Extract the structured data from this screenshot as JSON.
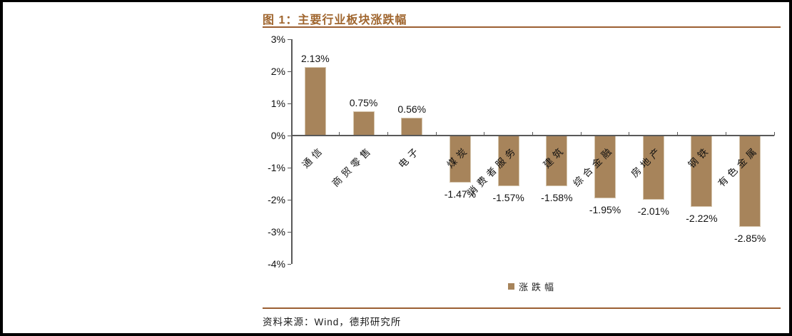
{
  "figure": {
    "title": "图 1：主要行业板块涨跌幅",
    "source": "资料来源：Wind，德邦研究所"
  },
  "chart_data": {
    "type": "bar",
    "title": "主要行业板块涨跌幅",
    "categories": [
      "通信",
      "商贸零售",
      "电子",
      "煤炭",
      "消费者服务",
      "建筑",
      "综合金融",
      "房地产",
      "钢铁",
      "有色金属"
    ],
    "values": [
      2.13,
      0.75,
      0.56,
      -1.47,
      -1.57,
      -1.58,
      -1.95,
      -2.01,
      -2.22,
      -2.85
    ],
    "value_labels": [
      "2.13%",
      "0.75%",
      "0.56%",
      "-1.47%",
      "-1.57%",
      "-1.58%",
      "-1.95%",
      "-2.01%",
      "-2.22%",
      "-2.85%"
    ],
    "unit": "%",
    "ylim": [
      -4,
      3
    ],
    "y_ticks": [
      {
        "value": 3,
        "label": "3%"
      },
      {
        "value": 2,
        "label": "2%"
      },
      {
        "value": 1,
        "label": "1%"
      },
      {
        "value": 0,
        "label": "0%"
      },
      {
        "value": -1,
        "label": "-1%"
      },
      {
        "value": -2,
        "label": "-2%"
      },
      {
        "value": -3,
        "label": "-3%"
      },
      {
        "value": -4,
        "label": "-4%"
      }
    ],
    "grid": false,
    "legend": {
      "label": "涨跌幅",
      "position": "bottom"
    },
    "colors": {
      "bar_fill": "#A7845B",
      "bar_edge": "#D5C6AE",
      "axis": "#595959",
      "label_text": "#111111"
    }
  },
  "theme": {
    "accent_rule": "#9B5F32",
    "title_color": "#A0662F",
    "frame_color": "#000000"
  }
}
